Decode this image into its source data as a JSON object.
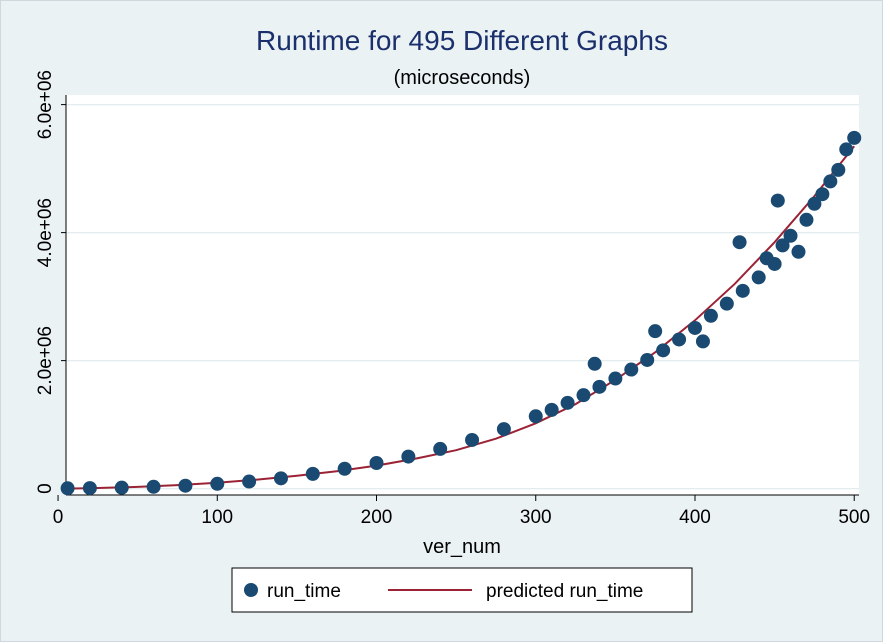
{
  "chart_data": {
    "type": "scatter",
    "title": "Runtime for 495 Different Graphs",
    "subtitle": "(microseconds)",
    "xlabel": "ver_num",
    "ylabel": "",
    "xlim": [
      5,
      503
    ],
    "ylim": [
      -100000,
      6150000
    ],
    "x_ticks": [
      0,
      100,
      200,
      300,
      400,
      500
    ],
    "y_ticks": [
      {
        "value": 0,
        "label": "0"
      },
      {
        "value": 2000000,
        "label": "2.0e+06"
      },
      {
        "value": 4000000,
        "label": "4.0e+06"
      },
      {
        "value": 6000000,
        "label": "6.0e+06"
      }
    ],
    "grid": true,
    "legend_position": "bottom",
    "legend": [
      "run_time",
      "predicted run_time"
    ],
    "colors": {
      "points": "#1a4a72",
      "fit_line": "#9b2335",
      "plot_bg": "#ffffff",
      "outer_bg": "#eaf2f3",
      "grid": "#e3ecee",
      "title": "#1a2f6b"
    },
    "series": [
      {
        "name": "run_time",
        "kind": "scatter",
        "x": [
          6,
          20,
          40,
          60,
          80,
          100,
          120,
          140,
          160,
          180,
          200,
          220,
          240,
          260,
          280,
          300,
          310,
          320,
          330,
          337,
          340,
          350,
          360,
          370,
          375,
          380,
          390,
          400,
          405,
          410,
          420,
          428,
          430,
          440,
          445,
          450,
          452,
          455,
          460,
          465,
          470,
          475,
          480,
          485,
          490,
          495,
          500
        ],
        "y": [
          5000,
          8000,
          15000,
          28000,
          45000,
          75000,
          110000,
          160000,
          230000,
          310000,
          400000,
          500000,
          620000,
          760000,
          930000,
          1130000,
          1230000,
          1340000,
          1460000,
          1950000,
          1590000,
          1720000,
          1860000,
          2010000,
          2460000,
          2160000,
          2330000,
          2510000,
          2300000,
          2700000,
          2890000,
          3850000,
          3090000,
          3300000,
          3600000,
          3510000,
          4500000,
          3800000,
          3950000,
          3700000,
          4200000,
          4450000,
          4600000,
          4800000,
          4980000,
          5300000,
          5480000
        ]
      },
      {
        "name": "predicted run_time",
        "kind": "line",
        "x": [
          6,
          25,
          50,
          75,
          100,
          125,
          150,
          175,
          200,
          225,
          250,
          275,
          300,
          325,
          350,
          375,
          400,
          425,
          450,
          475,
          500
        ],
        "y": [
          0,
          10000,
          27000,
          55000,
          90000,
          140000,
          200000,
          270000,
          360000,
          470000,
          600000,
          780000,
          1020000,
          1320000,
          1700000,
          2130000,
          2630000,
          3200000,
          3850000,
          4570000,
          5350000
        ]
      }
    ]
  }
}
